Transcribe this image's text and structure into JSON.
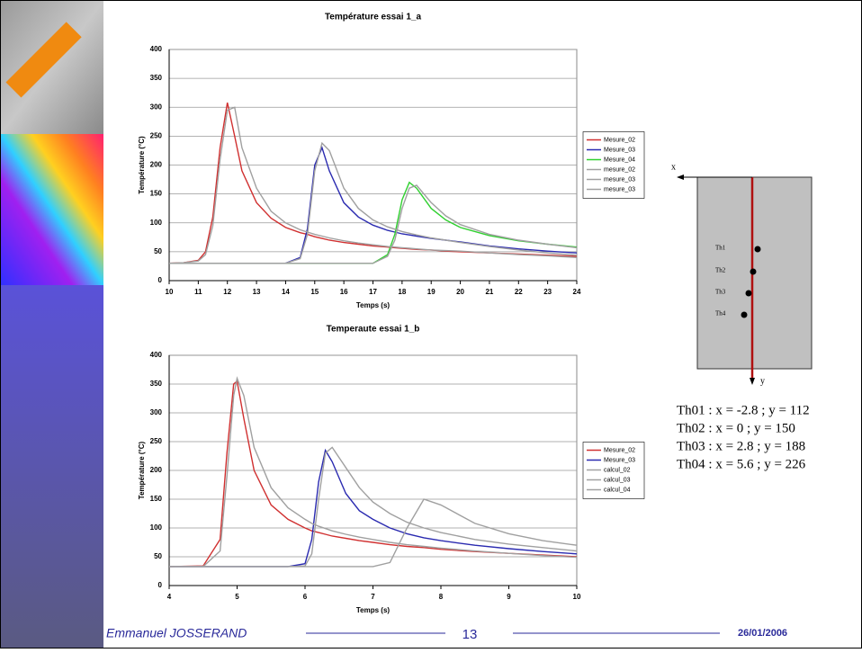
{
  "chart_data": [
    {
      "type": "line",
      "title": "Température essai 1_a",
      "x_label": "Temps (s)",
      "y_label": "Température (°C)",
      "x": [
        10,
        10.5,
        11,
        11.25,
        11.5,
        11.75,
        12,
        12.25,
        12.5,
        13,
        13.5,
        14,
        14.5,
        14.75,
        15,
        15.25,
        15.5,
        16,
        16.5,
        17,
        17.5,
        17.75,
        18,
        18.25,
        18.5,
        19,
        19.5,
        20,
        21,
        22,
        23,
        24
      ],
      "series": [
        {
          "name": "Mesure_02",
          "color": "#d03030",
          "values": [
            30,
            31,
            35,
            50,
            110,
            230,
            308,
            250,
            190,
            135,
            108,
            92,
            83,
            80,
            76,
            73,
            70,
            66,
            63,
            60,
            58,
            57,
            56,
            55,
            54,
            53,
            51,
            50,
            48,
            46,
            44,
            42
          ]
        },
        {
          "name": "Mesure_03",
          "color": "#2a2ab0",
          "values": [
            30,
            30,
            30,
            30,
            30,
            30,
            30,
            30,
            30,
            30,
            30,
            30,
            40,
            90,
            200,
            230,
            190,
            135,
            110,
            96,
            87,
            84,
            81,
            79,
            77,
            73,
            70,
            67,
            60,
            55,
            51,
            48
          ]
        },
        {
          "name": "Mesure_04",
          "color": "#30d030",
          "values": [
            30,
            30,
            30,
            30,
            30,
            30,
            30,
            30,
            30,
            30,
            30,
            30,
            30,
            30,
            30,
            30,
            30,
            30,
            30,
            30,
            45,
            80,
            140,
            170,
            160,
            125,
            105,
            92,
            78,
            69,
            63,
            58
          ]
        },
        {
          "name": "mesure_02",
          "color": "#a0a0a0",
          "values": [
            30,
            31,
            34,
            45,
            95,
            210,
            295,
            300,
            230,
            160,
            120,
            100,
            88,
            84,
            80,
            77,
            74,
            69,
            65,
            62,
            59,
            58,
            57,
            56,
            55,
            53,
            52,
            51,
            48,
            45,
            43,
            40
          ]
        },
        {
          "name": "mesure_03",
          "color": "#a0a0a0",
          "values": [
            30,
            30,
            30,
            30,
            30,
            30,
            30,
            30,
            30,
            30,
            30,
            30,
            38,
            80,
            190,
            238,
            225,
            160,
            125,
            105,
            93,
            89,
            85,
            82,
            79,
            74,
            70,
            66,
            59,
            53,
            48,
            44
          ]
        },
        {
          "name": "mesure_03",
          "color": "#a0a0a0",
          "values": [
            30,
            30,
            30,
            30,
            30,
            30,
            30,
            30,
            30,
            30,
            30,
            30,
            30,
            30,
            30,
            30,
            30,
            30,
            30,
            30,
            42,
            70,
            125,
            160,
            165,
            135,
            112,
            97,
            80,
            70,
            63,
            57
          ]
        }
      ],
      "xlim": [
        10,
        24
      ],
      "xticks": [
        10,
        11,
        12,
        13,
        14,
        15,
        16,
        17,
        18,
        19,
        20,
        21,
        22,
        23,
        24
      ],
      "ylim": [
        0,
        400
      ],
      "yticks": [
        0,
        50,
        100,
        150,
        200,
        250,
        300,
        350,
        400
      ],
      "grid": true,
      "legend": "right"
    },
    {
      "type": "line",
      "title": "Temperaute essai 1_b",
      "x_label": "Temps (s)",
      "y_label": "Température (°C)",
      "x": [
        4,
        4.5,
        4.75,
        4.85,
        4.95,
        5,
        5.1,
        5.25,
        5.5,
        5.75,
        6,
        6.1,
        6.2,
        6.3,
        6.4,
        6.6,
        6.8,
        7,
        7.25,
        7.5,
        7.75,
        8,
        8.5,
        9,
        9.5,
        10
      ],
      "series": [
        {
          "name": "Mesure_02",
          "color": "#d03030",
          "values": [
            33,
            34,
            80,
            230,
            350,
            355,
            290,
            200,
            140,
            115,
            100,
            95,
            92,
            89,
            86,
            82,
            78,
            75,
            71,
            68,
            66,
            63,
            59,
            56,
            53,
            50
          ]
        },
        {
          "name": "Mesure_03",
          "color": "#2a2ab0",
          "values": [
            33,
            33,
            33,
            33,
            33,
            33,
            33,
            33,
            33,
            33,
            38,
            80,
            180,
            235,
            215,
            160,
            130,
            115,
            100,
            90,
            83,
            78,
            70,
            64,
            59,
            55
          ]
        },
        {
          "name": "calcul_02",
          "color": "#a0a0a0",
          "values": [
            33,
            33,
            60,
            190,
            330,
            360,
            330,
            240,
            170,
            135,
            115,
            108,
            103,
            99,
            95,
            89,
            84,
            80,
            75,
            71,
            68,
            65,
            60,
            56,
            52,
            49
          ]
        },
        {
          "name": "calcul_03",
          "color": "#a0a0a0",
          "values": [
            33,
            33,
            33,
            33,
            33,
            33,
            33,
            33,
            33,
            33,
            34,
            55,
            150,
            230,
            240,
            205,
            170,
            145,
            125,
            110,
            100,
            92,
            80,
            72,
            66,
            60
          ]
        },
        {
          "name": "calcul_04",
          "color": "#a0a0a0",
          "values": [
            33,
            33,
            33,
            33,
            33,
            33,
            33,
            33,
            33,
            33,
            33,
            33,
            33,
            33,
            33,
            33,
            33,
            33,
            40,
            100,
            150,
            140,
            108,
            90,
            78,
            70
          ]
        }
      ],
      "xlim": [
        4,
        10
      ],
      "xticks": [
        4,
        5,
        6,
        7,
        8,
        9,
        10
      ],
      "ylim": [
        0,
        400
      ],
      "yticks": [
        0,
        50,
        100,
        150,
        200,
        250,
        300,
        350,
        400
      ],
      "grid": true,
      "legend": "right"
    }
  ],
  "diagram": {
    "x_axis": "x",
    "y_axis": "y",
    "probes": [
      "Th1",
      "Th2",
      "Th3",
      "Th4"
    ],
    "coordinates": [
      "Th01 : x = -2.8 ; y = 112",
      "Th02 : x = 0 ; y = 150",
      "Th03 : x = 2.8 ; y = 188",
      "Th04 : x = 5.6 ; y = 226"
    ]
  },
  "footer": {
    "author": "Emmanuel JOSSERAND",
    "page": "13",
    "date": "26/01/2006"
  }
}
